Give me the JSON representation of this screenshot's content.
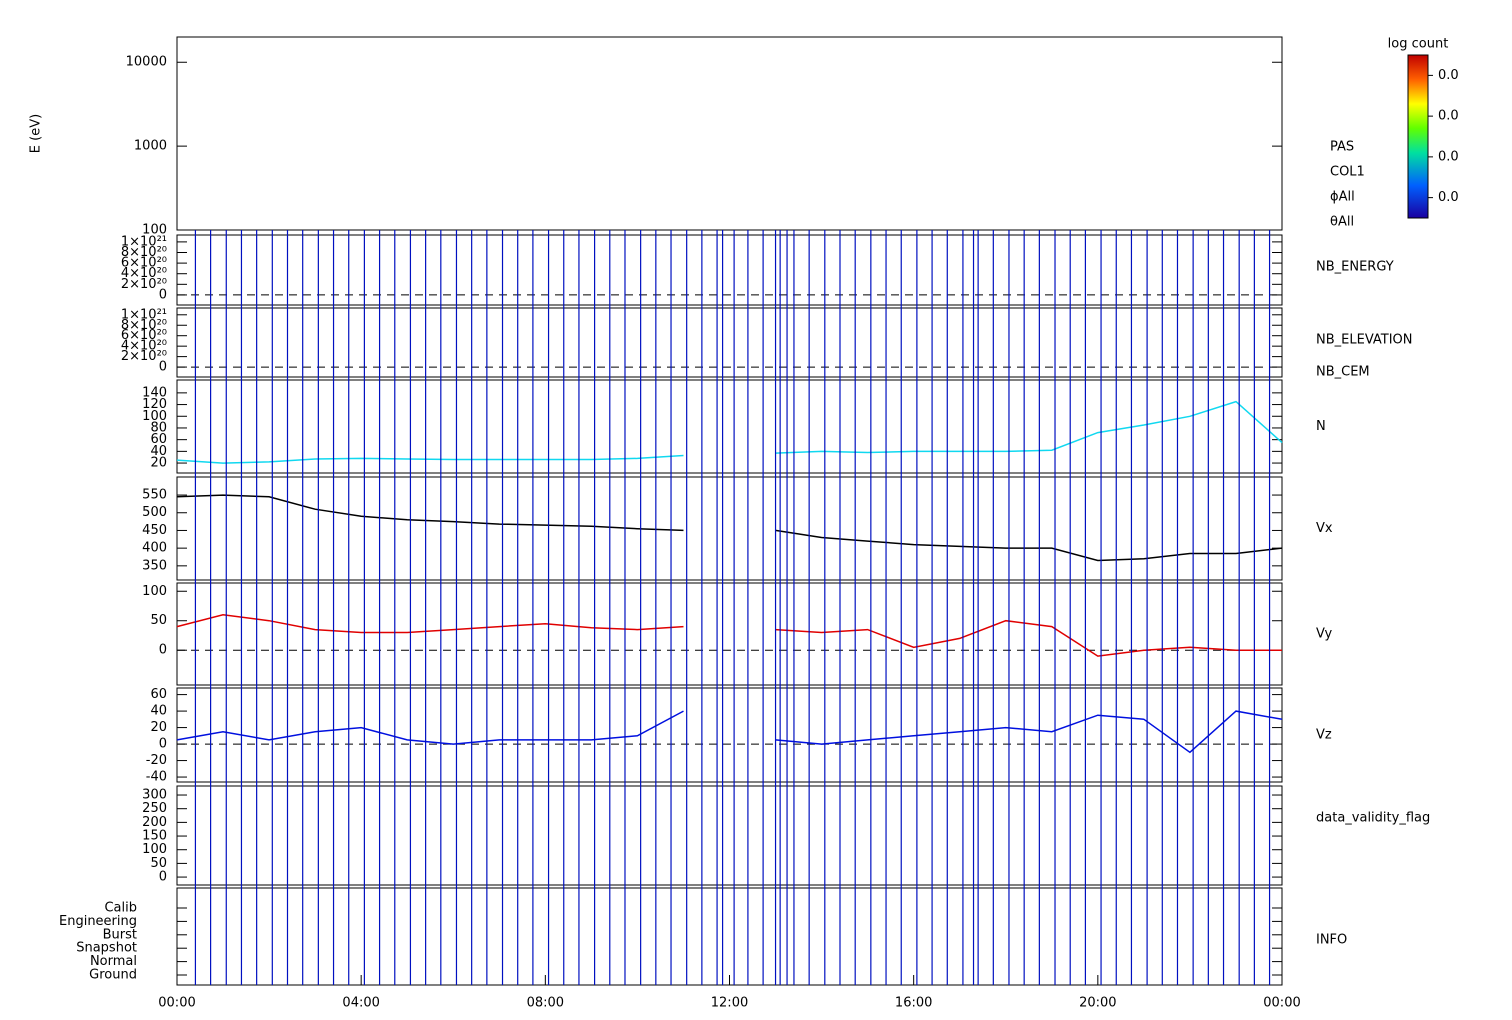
{
  "xaxis": {
    "xlim": [
      0,
      24
    ],
    "xticks": [
      {
        "value": 0,
        "label": "00:00"
      },
      {
        "value": 4,
        "label": "04:00"
      },
      {
        "value": 8,
        "label": "08:00"
      },
      {
        "value": 12,
        "label": "12:00"
      },
      {
        "value": 16,
        "label": "16:00"
      },
      {
        "value": 20,
        "label": "20:00"
      },
      {
        "value": 24,
        "label": "00:00"
      }
    ]
  },
  "events": {
    "color": "#0010c0",
    "times": [
      0.4,
      0.73,
      1.07,
      1.4,
      1.73,
      2.07,
      2.4,
      2.73,
      3.07,
      3.4,
      3.73,
      4.07,
      4.4,
      4.73,
      5.07,
      5.4,
      5.73,
      6.07,
      6.4,
      6.73,
      7.07,
      7.4,
      7.73,
      8.07,
      8.4,
      8.73,
      9.07,
      9.4,
      9.73,
      10.07,
      10.4,
      10.73,
      11.07,
      11.4,
      11.73,
      11.85,
      12.1,
      12.4,
      12.73,
      13.0,
      13.1,
      13.25,
      13.4,
      13.73,
      14.07,
      14.4,
      14.73,
      15.07,
      15.4,
      15.73,
      16.07,
      16.4,
      16.73,
      17.07,
      17.3,
      17.4,
      17.73,
      18.07,
      18.4,
      18.73,
      19.07,
      19.4,
      19.73,
      20.07,
      20.4,
      20.73,
      21.07,
      21.4,
      21.73,
      22.07,
      22.4,
      22.73,
      23.07,
      23.4,
      23.73
    ]
  },
  "chart_data": [
    {
      "type": "spectrogram",
      "ylabel": "E (eV)",
      "log": true,
      "ylim": [
        100,
        20000
      ],
      "yticks": [
        100,
        1000,
        10000
      ],
      "labels": [
        "PAS",
        "COL1",
        "ϕAll",
        "θAll"
      ],
      "colorbar_title": "log count",
      "clim": [
        0.005,
        0.045
      ],
      "cticks": [
        {
          "value": 0.04,
          "label": "0.0"
        },
        {
          "value": 0.03,
          "label": "0.0"
        },
        {
          "value": 0.02,
          "label": "0.0"
        },
        {
          "value": 0.01,
          "label": "0.0"
        }
      ]
    },
    {
      "type": "flat",
      "ylim": [
        -1.9e+20,
        1.13e+21
      ],
      "zero_line": true,
      "yticks": [
        0,
        {
          "value": 2e+20,
          "label": "2×10²⁰"
        },
        {
          "value": 4e+20,
          "label": "4×10²⁰"
        },
        {
          "value": 6e+20,
          "label": "6×10²⁰"
        },
        {
          "value": 8e+20,
          "label": "8×10²⁰"
        },
        {
          "value": 1e+21,
          "label": "1×10²¹"
        }
      ],
      "labels": [
        {
          "text": "NB_ENERGY",
          "color": "#22dd22"
        }
      ]
    },
    {
      "type": "flat",
      "ylim": [
        -1.9e+20,
        1.13e+21
      ],
      "zero_line": true,
      "yticks": [
        0,
        {
          "value": 2e+20,
          "label": "2×10²⁰"
        },
        {
          "value": 4e+20,
          "label": "4×10²⁰"
        },
        {
          "value": 6e+20,
          "label": "6×10²⁰"
        },
        {
          "value": 8e+20,
          "label": "8×10²⁰"
        },
        {
          "value": 1e+21,
          "label": "1×10²¹"
        }
      ],
      "labels": [
        {
          "text": "NB_ELEVATION",
          "color": "#22dd22"
        },
        {
          "text": "NB_CEM",
          "color": "#0010c0"
        }
      ]
    },
    {
      "type": "line",
      "ylim": [
        3,
        162
      ],
      "yticks": [
        20,
        40,
        60,
        80,
        100,
        120,
        140
      ],
      "x": [
        0,
        1,
        2,
        3,
        4,
        5,
        6,
        7,
        8,
        9,
        10,
        11,
        12,
        13,
        14,
        15,
        16,
        17,
        18,
        19,
        20,
        21,
        22,
        23,
        24
      ],
      "series": [
        {
          "name": "N",
          "color": "#10d8f0",
          "values": [
            25,
            20,
            22,
            27,
            28,
            27,
            26,
            26,
            26,
            26,
            28,
            33,
            null,
            37,
            40,
            38,
            40,
            40,
            40,
            42,
            72,
            85,
            100,
            125,
            55
          ]
        }
      ]
    },
    {
      "type": "line",
      "ylim": [
        310,
        601
      ],
      "yticks": [
        350,
        400,
        450,
        500,
        550
      ],
      "x": [
        0,
        1,
        2,
        3,
        4,
        5,
        6,
        7,
        8,
        9,
        10,
        11,
        12,
        13,
        14,
        15,
        16,
        17,
        18,
        19,
        20,
        21,
        22,
        23,
        24
      ],
      "series": [
        {
          "name": "Vx",
          "color": "#000000",
          "values": [
            545,
            550,
            545,
            510,
            490,
            480,
            475,
            468,
            465,
            462,
            455,
            450,
            null,
            450,
            430,
            420,
            410,
            405,
            400,
            400,
            365,
            370,
            385,
            385,
            400
          ]
        }
      ]
    },
    {
      "type": "line",
      "ylim": [
        -59,
        114
      ],
      "yticks": [
        0,
        50,
        100
      ],
      "zero_line": true,
      "x": [
        0,
        1,
        2,
        3,
        4,
        5,
        6,
        7,
        8,
        9,
        10,
        11,
        12,
        13,
        14,
        15,
        16,
        17,
        18,
        19,
        20,
        21,
        22,
        23,
        24
      ],
      "series": [
        {
          "name": "Vy",
          "color": "#e00000",
          "values": [
            40,
            60,
            50,
            35,
            30,
            30,
            35,
            40,
            45,
            38,
            35,
            40,
            null,
            35,
            30,
            35,
            5,
            20,
            50,
            40,
            -10,
            0,
            5,
            0,
            0
          ]
        }
      ]
    },
    {
      "type": "line",
      "ylim": [
        -46,
        68
      ],
      "yticks": [
        -40,
        -20,
        0,
        20,
        40,
        60
      ],
      "zero_line": true,
      "x": [
        0,
        1,
        2,
        3,
        4,
        5,
        6,
        7,
        8,
        9,
        10,
        11,
        12,
        13,
        14,
        15,
        16,
        17,
        18,
        19,
        20,
        21,
        22,
        23,
        24
      ],
      "series": [
        {
          "name": "Vz",
          "color": "#0010e0",
          "values": [
            5,
            15,
            5,
            15,
            20,
            5,
            0,
            5,
            5,
            5,
            10,
            40,
            null,
            5,
            0,
            5,
            10,
            15,
            20,
            15,
            35,
            30,
            -10,
            40,
            30
          ]
        }
      ]
    },
    {
      "type": "flat",
      "ylim": [
        -29,
        333
      ],
      "yticks": [
        0,
        50,
        100,
        150,
        200,
        250,
        300
      ],
      "labels": [
        {
          "text": "data_validity_flag",
          "color": "#000000"
        }
      ]
    },
    {
      "type": "states",
      "categories": [
        "Calib",
        "Engineering",
        "Burst",
        "Snapshot",
        "Normal",
        "Ground"
      ],
      "labels": [
        {
          "text": "INFO",
          "color": "#000000"
        }
      ]
    }
  ]
}
